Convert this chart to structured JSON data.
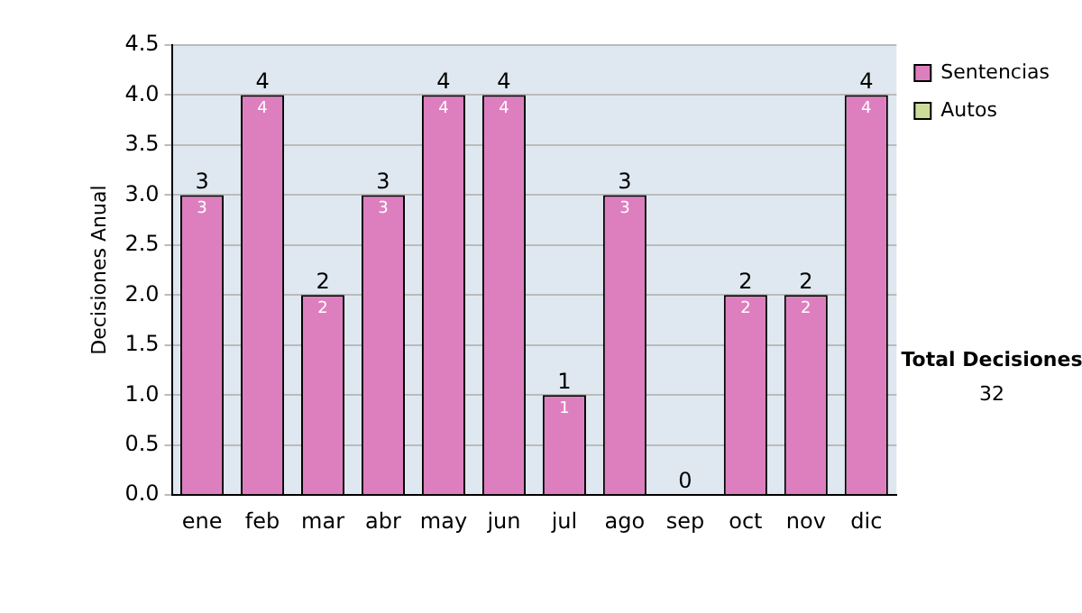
{
  "chart_data": {
    "type": "bar",
    "stacked": true,
    "ylabel": "Decisiones Anual",
    "categories": [
      "ene",
      "feb",
      "mar",
      "abr",
      "may",
      "jun",
      "jul",
      "ago",
      "sep",
      "oct",
      "nov",
      "dic"
    ],
    "series": [
      {
        "name": "Sentencias",
        "color": "#dd7fbf",
        "values": [
          3,
          4,
          2,
          3,
          4,
          4,
          1,
          3,
          0,
          2,
          2,
          4
        ],
        "value_labels": [
          "3",
          "4",
          "2",
          "3",
          "4",
          "4",
          "1",
          "3",
          null,
          "2",
          "2",
          "4"
        ]
      },
      {
        "name": "Autos",
        "color": "#ccdd99",
        "values": [
          0,
          0,
          0,
          0,
          0,
          0,
          0,
          0,
          0,
          0,
          0,
          0
        ]
      }
    ],
    "totals": [
      "3",
      "4",
      "2",
      "3",
      "4",
      "4",
      "1",
      "3",
      "0",
      "2",
      "2",
      "4"
    ],
    "ylim": [
      0,
      4.5
    ],
    "yticks": [
      "0.0",
      "0.5",
      "1.0",
      "1.5",
      "2.0",
      "2.5",
      "3.0",
      "3.5",
      "4.0",
      "4.5"
    ],
    "grid": "y",
    "legend": "right",
    "annotations": [
      "Total Decisiones",
      "32"
    ]
  }
}
